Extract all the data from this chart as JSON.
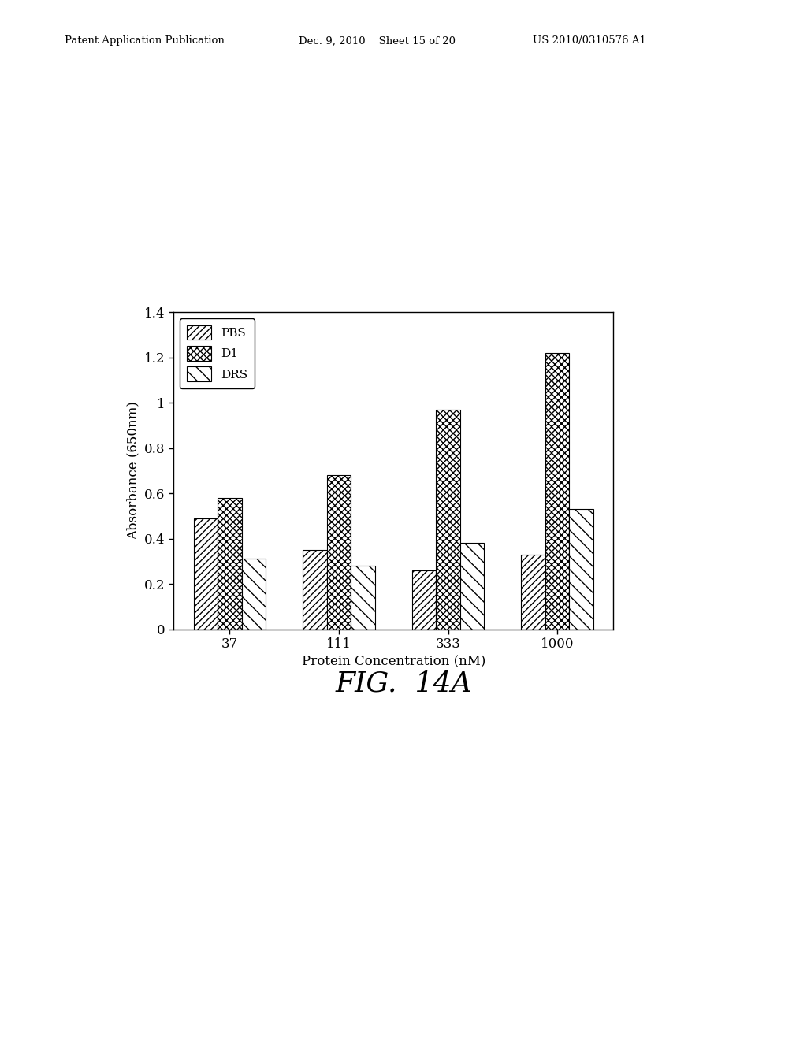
{
  "categories": [
    "37",
    "111",
    "333",
    "1000"
  ],
  "series": {
    "PBS": [
      0.49,
      0.35,
      0.26,
      0.33
    ],
    "D1": [
      0.58,
      0.68,
      0.97,
      1.22
    ],
    "DRS": [
      0.31,
      0.28,
      0.38,
      0.53
    ]
  },
  "series_order": [
    "PBS",
    "D1",
    "DRS"
  ],
  "xlabel": "Protein Concentration (nM)",
  "ylabel": "Absorbance (650nm)",
  "ylim": [
    0,
    1.4
  ],
  "yticks": [
    0,
    0.2,
    0.4,
    0.6,
    0.8,
    1.0,
    1.2,
    1.4
  ],
  "ytick_labels": [
    "0",
    "0.2",
    "0.4",
    "0.6",
    "0.8",
    "1",
    "1.2",
    "1.4"
  ],
  "figure_title": "FIG.  14A",
  "header_left": "Patent Application Publication",
  "header_mid": "Dec. 9, 2010    Sheet 15 of 20",
  "header_right": "US 2010/0310576 A1",
  "bar_width": 0.22,
  "background_color": "#ffffff",
  "edge_color": "#000000"
}
